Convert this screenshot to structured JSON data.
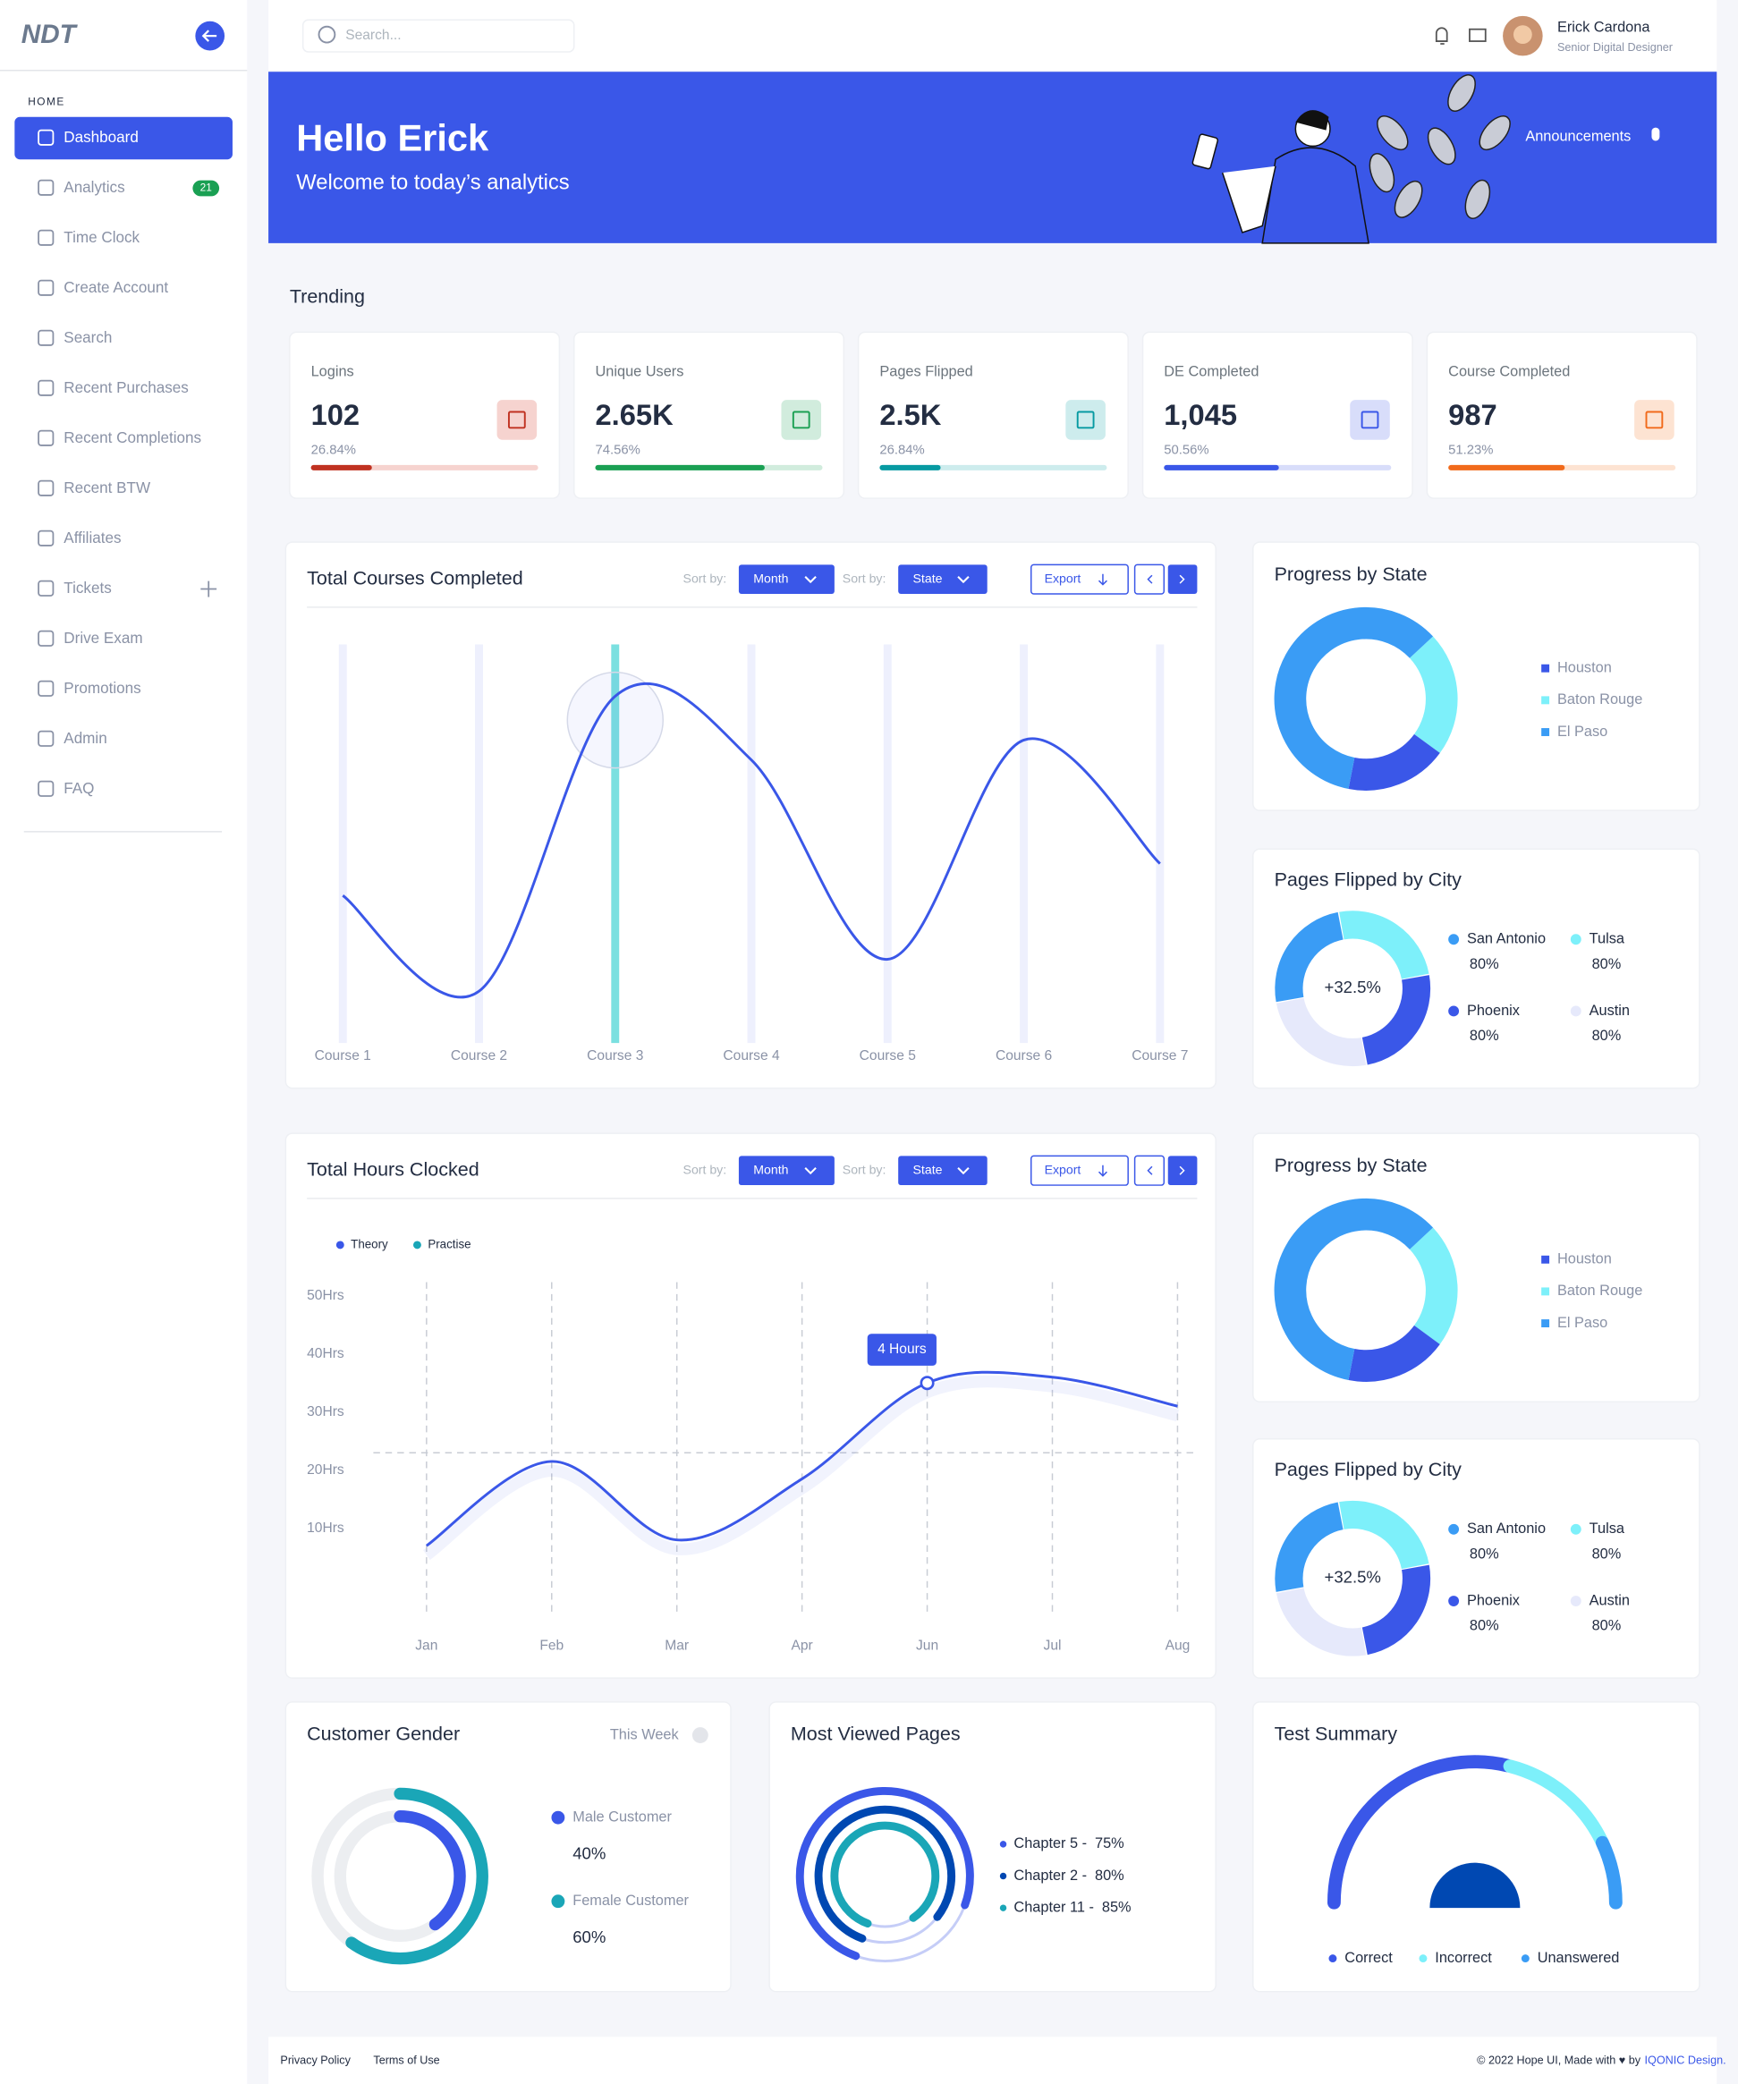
{
  "sidebar": {
    "logo": "NDT",
    "section": "HOME",
    "items": [
      {
        "label": "Dashboard"
      },
      {
        "label": "Analytics",
        "badge": 21
      },
      {
        "label": "Time Clock"
      },
      {
        "label": "Create Account"
      },
      {
        "label": "Search"
      },
      {
        "label": "Recent Purchases"
      },
      {
        "label": "Recent Completions"
      },
      {
        "label": "Recent BTW"
      },
      {
        "label": "Affiliates"
      },
      {
        "label": "Tickets"
      },
      {
        "label": "Drive Exam"
      },
      {
        "label": "Promotions"
      },
      {
        "label": "Admin"
      },
      {
        "label": "FAQ"
      }
    ]
  },
  "header": {
    "search_placeholder": "Search...",
    "user_name": "Erick Cardona",
    "user_role": "Senior Digital Designer"
  },
  "banner": {
    "title": "Hello Erick",
    "subtitle": "Welcome to today’s analytics",
    "announcements": "Announcements"
  },
  "trending": {
    "title": "Trending",
    "cards": [
      {
        "label": "Logins",
        "value": "102",
        "percent": 26.84,
        "percent_label": "26.84%",
        "color": "#c03221",
        "track": "#f6d3cf"
      },
      {
        "label": "Unique Users",
        "value": "2.65K",
        "percent": 74.56,
        "percent_label": "74.56%",
        "color": "#1aa053",
        "track": "#d1ecdd"
      },
      {
        "label": "Pages Flipped",
        "value": "2.5K",
        "percent": 26.84,
        "percent_label": "26.84%",
        "color": "#079aa2",
        "track": "#cdeced"
      },
      {
        "label": "DE Completed",
        "value": "1,045",
        "percent": 50.56,
        "percent_label": "50.56%",
        "color": "#3a57e8",
        "track": "#d8ddfa"
      },
      {
        "label": "Course Completed",
        "value": "987",
        "percent": 51.23,
        "percent_label": "51.23%",
        "color": "#f16a1b",
        "track": "#fde3d2"
      }
    ]
  },
  "chart_data": [
    {
      "type": "line",
      "title": "Total Courses Completed",
      "categories": [
        "Course 1",
        "Course 2",
        "Course 3",
        "Course 4",
        "Course 5",
        "Course 6",
        "Course 7"
      ],
      "values": [
        37,
        13,
        87,
        71,
        21,
        76,
        45
      ],
      "color": "#3a57e8",
      "ylim": [
        0,
        100
      ],
      "highlight": 2,
      "sorts": [
        {
          "label": "Sort by:",
          "value": "Month"
        },
        {
          "label": "Sort by:",
          "value": "State"
        }
      ],
      "export": "Export"
    },
    {
      "type": "line",
      "title": "Total Hours Clocked",
      "categories": [
        "Jan",
        "Feb",
        "Mar",
        "Apr",
        "Jun",
        "Jul",
        "Aug"
      ],
      "series": [
        {
          "name": "Theory",
          "color": "#3a57e8",
          "values": [
            7,
            21.5,
            8,
            18.5,
            35,
            36,
            31
          ]
        },
        {
          "name": "Practise",
          "color": "#1aa6b7",
          "values": [
            null,
            null,
            null,
            null,
            null,
            null,
            null
          ]
        }
      ],
      "ylim": [
        0,
        50
      ],
      "yticks": [
        {
          "value": 10,
          "label": "10Hrs"
        },
        {
          "value": 20,
          "label": "20Hrs"
        },
        {
          "value": 30,
          "label": "30Hrs"
        },
        {
          "value": 40,
          "label": "40Hrs"
        },
        {
          "value": 50,
          "label": "50Hrs"
        }
      ],
      "reference_line": 23,
      "annotation": "4 Hours",
      "annotation_index": 4,
      "sorts": [
        {
          "label": "Sort by:",
          "value": "Month"
        },
        {
          "label": "Sort by:",
          "value": "State"
        }
      ],
      "export": "Export"
    },
    {
      "type": "donut",
      "title": "Progress by State",
      "categories": [
        "Houston",
        "Baton Rouge",
        "El Paso"
      ],
      "values": [
        18,
        22,
        60
      ],
      "colors": [
        "#3a57e8",
        "#7df0fa",
        "#3a9cf5"
      ]
    },
    {
      "type": "city",
      "title": "Pages Flipped by City",
      "center_label": "+32.5%",
      "categories": [
        "San Antonio",
        "Tulsa",
        "Phoenix",
        "Austin"
      ],
      "values": [
        80,
        80,
        80,
        80
      ],
      "value_labels": [
        "80%",
        "80%",
        "80%",
        "80%"
      ],
      "colors": [
        "#3a9cf5",
        "#7df0fa",
        "#3a57e8",
        "#e6e9fb"
      ]
    },
    {
      "type": "donut",
      "title": "Progress by State",
      "categories": [
        "Houston",
        "Baton Rouge",
        "El Paso"
      ],
      "values": [
        18,
        22,
        60
      ],
      "colors": [
        "#3a57e8",
        "#7df0fa",
        "#3a9cf5"
      ]
    },
    {
      "type": "city",
      "title": "Pages Flipped by City",
      "center_label": "+32.5%",
      "categories": [
        "San Antonio",
        "Tulsa",
        "Phoenix",
        "Austin"
      ],
      "values": [
        80,
        80,
        80,
        80
      ],
      "value_labels": [
        "80%",
        "80%",
        "80%",
        "80%"
      ],
      "colors": [
        "#3a9cf5",
        "#7df0fa",
        "#3a57e8",
        "#e6e9fb"
      ]
    },
    {
      "type": "gender",
      "title": "Customer Gender",
      "filter": "This Week",
      "categories": [
        "Male Customer",
        "Female Customer"
      ],
      "values": [
        40,
        60
      ],
      "value_labels": [
        "40%",
        "60%"
      ],
      "colors": [
        "#3a57e8",
        "#1aa6b7"
      ]
    },
    {
      "type": "rings",
      "title": "Most Viewed Pages",
      "categories": [
        "Chapter 5 -",
        "Chapter 2 -",
        "Chapter 11 -"
      ],
      "values": [
        75,
        80,
        85
      ],
      "value_labels": [
        "75%",
        "80%",
        "85%"
      ],
      "colors": [
        "#3a57e8",
        "#0048b2",
        "#1aa6b7"
      ]
    },
    {
      "type": "gauge",
      "title": "Test Summary",
      "categories": [
        "Correct",
        "Incorrect",
        "Unanswered"
      ],
      "values": [
        58,
        28,
        14
      ],
      "colors": [
        "#3a57e8",
        "#7df0fa",
        "#3a9cf5"
      ]
    }
  ],
  "footer": {
    "links": [
      "Privacy Policy",
      "Terms of Use"
    ],
    "copyright": "© 2022 Hope UI, Made with ♥ by",
    "brand": "IQONIC Design."
  }
}
